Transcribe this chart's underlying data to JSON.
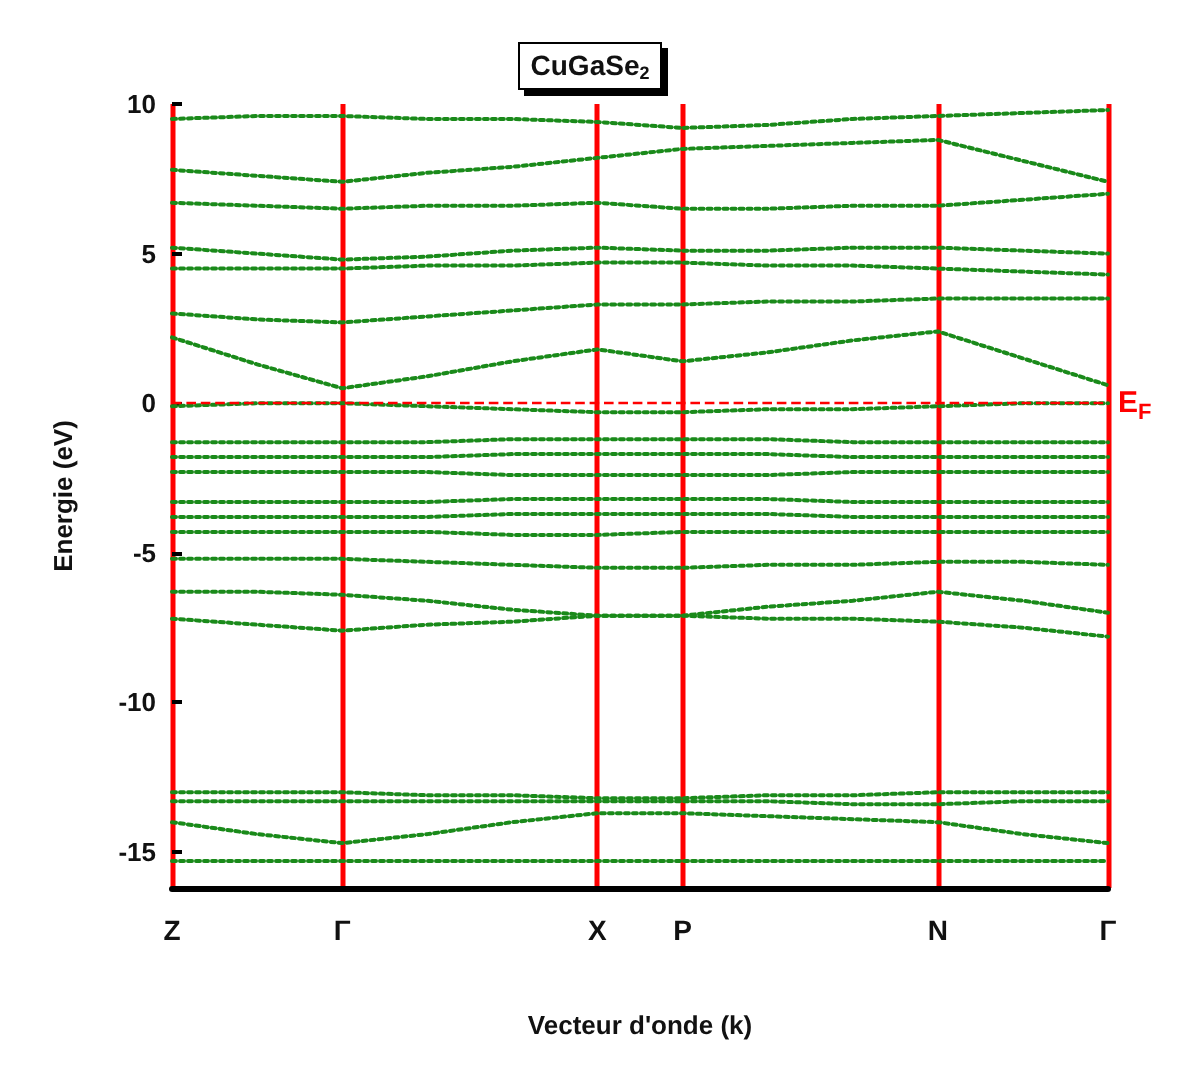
{
  "chart_data": {
    "type": "line",
    "title": "CuGaSe$_{2}$",
    "xlabel": "Vecteur d'onde (k)",
    "ylabel": "Energie (eV)",
    "categories": [
      "Z",
      null,
      "Γ",
      null,
      null,
      "X",
      "P",
      null,
      null,
      "N",
      null,
      "Γ"
    ],
    "ylim": [
      -16.2,
      10
    ],
    "yticks": [
      -15,
      -10,
      -5,
      0,
      5,
      10
    ],
    "grid": "x",
    "marker": "none",
    "line_style": "dotted",
    "series": [
      {
        "color": "#1a8a1a",
        "values": [
          -15.3,
          -15.3,
          -15.3,
          -15.3,
          -15.3,
          -15.3,
          -15.3,
          -15.3,
          -15.3,
          -15.3,
          -15.3,
          -15.3
        ]
      },
      {
        "color": "#1a8a1a",
        "values": [
          -14.0,
          -14.4,
          -14.7,
          -14.4,
          -14.0,
          -13.7,
          -13.7,
          -13.8,
          -13.9,
          -14.0,
          -14.4,
          -14.7
        ]
      },
      {
        "color": "#1a8a1a",
        "values": [
          -13.3,
          -13.3,
          -13.3,
          -13.3,
          -13.3,
          -13.3,
          -13.3,
          -13.3,
          -13.4,
          -13.4,
          -13.3,
          -13.3
        ]
      },
      {
        "color": "#1a8a1a",
        "values": [
          -13.0,
          -13.0,
          -13.0,
          -13.1,
          -13.1,
          -13.2,
          -13.2,
          -13.1,
          -13.1,
          -13.0,
          -13.0,
          -13.0
        ]
      },
      {
        "color": "#1a8a1a",
        "values": [
          -7.2,
          -7.4,
          -7.6,
          -7.4,
          -7.3,
          -7.1,
          -7.1,
          -7.2,
          -7.2,
          -7.3,
          -7.5,
          -7.8
        ]
      },
      {
        "color": "#1a8a1a",
        "values": [
          -6.3,
          -6.3,
          -6.4,
          -6.6,
          -6.9,
          -7.1,
          -7.1,
          -6.8,
          -6.6,
          -6.3,
          -6.6,
          -7.0
        ]
      },
      {
        "color": "#1a8a1a",
        "values": [
          -5.2,
          -5.2,
          -5.2,
          -5.3,
          -5.4,
          -5.5,
          -5.5,
          -5.4,
          -5.4,
          -5.3,
          -5.3,
          -5.4
        ]
      },
      {
        "color": "#1a8a1a",
        "values": [
          -4.3,
          -4.3,
          -4.3,
          -4.3,
          -4.4,
          -4.4,
          -4.3,
          -4.3,
          -4.3,
          -4.3,
          -4.3,
          -4.3
        ]
      },
      {
        "color": "#1a8a1a",
        "values": [
          -3.8,
          -3.8,
          -3.8,
          -3.8,
          -3.7,
          -3.7,
          -3.7,
          -3.7,
          -3.8,
          -3.8,
          -3.8,
          -3.8
        ]
      },
      {
        "color": "#1a8a1a",
        "values": [
          -3.3,
          -3.3,
          -3.3,
          -3.3,
          -3.2,
          -3.2,
          -3.2,
          -3.2,
          -3.3,
          -3.3,
          -3.3,
          -3.3
        ]
      },
      {
        "color": "#1a8a1a",
        "values": [
          -2.3,
          -2.3,
          -2.3,
          -2.3,
          -2.4,
          -2.4,
          -2.4,
          -2.4,
          -2.3,
          -2.3,
          -2.3,
          -2.3
        ]
      },
      {
        "color": "#1a8a1a",
        "values": [
          -1.8,
          -1.8,
          -1.8,
          -1.8,
          -1.7,
          -1.7,
          -1.7,
          -1.7,
          -1.8,
          -1.8,
          -1.8,
          -1.8
        ]
      },
      {
        "color": "#1a8a1a",
        "values": [
          -1.3,
          -1.3,
          -1.3,
          -1.3,
          -1.2,
          -1.2,
          -1.2,
          -1.2,
          -1.3,
          -1.3,
          -1.3,
          -1.3
        ]
      },
      {
        "color": "#1a8a1a",
        "values": [
          -0.1,
          0,
          0,
          -0.1,
          -0.2,
          -0.3,
          -0.3,
          -0.2,
          -0.2,
          -0.1,
          0,
          0
        ]
      },
      {
        "color": "#1a8a1a",
        "values": [
          2.2,
          1.3,
          0.5,
          0.9,
          1.4,
          1.8,
          1.4,
          1.7,
          2.1,
          2.4,
          1.5,
          0.6
        ]
      },
      {
        "color": "#1a8a1a",
        "values": [
          3.0,
          2.8,
          2.7,
          2.9,
          3.1,
          3.3,
          3.3,
          3.4,
          3.4,
          3.5,
          3.5,
          3.5
        ]
      },
      {
        "color": "#1a8a1a",
        "values": [
          4.5,
          4.5,
          4.5,
          4.6,
          4.6,
          4.7,
          4.7,
          4.6,
          4.6,
          4.5,
          4.4,
          4.3
        ]
      },
      {
        "color": "#1a8a1a",
        "values": [
          5.2,
          5.0,
          4.8,
          4.9,
          5.1,
          5.2,
          5.1,
          5.1,
          5.2,
          5.2,
          5.1,
          5.0
        ]
      },
      {
        "color": "#1a8a1a",
        "values": [
          6.7,
          6.6,
          6.5,
          6.6,
          6.6,
          6.7,
          6.5,
          6.5,
          6.6,
          6.6,
          6.8,
          7.0
        ]
      },
      {
        "color": "#1a8a1a",
        "values": [
          7.8,
          7.6,
          7.4,
          7.7,
          7.9,
          8.2,
          8.5,
          8.6,
          8.7,
          8.8,
          8.1,
          7.4
        ]
      },
      {
        "color": "#1a8a1a",
        "values": [
          9.5,
          9.6,
          9.6,
          9.5,
          9.5,
          9.4,
          9.2,
          9.3,
          9.5,
          9.6,
          9.7,
          9.8
        ]
      }
    ],
    "ref_lines": [
      {
        "axis": "y",
        "value": 0,
        "label": "E$_{F}$",
        "color": "#ff0000",
        "line_style": "dashed"
      }
    ]
  }
}
